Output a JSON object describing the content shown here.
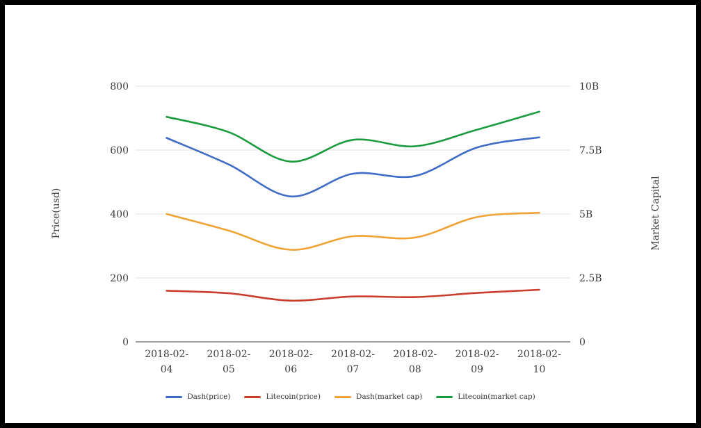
{
  "chart_data": {
    "type": "line",
    "categories": [
      "2018-02-04",
      "2018-02-05",
      "2018-02-06",
      "2018-02-07",
      "2018-02-08",
      "2018-02-09",
      "2018-02-10"
    ],
    "series": [
      {
        "name": "Dash(price)",
        "axis": "left",
        "color": "#3E6CC7",
        "values": [
          638,
          555,
          455,
          526,
          519,
          608,
          640
        ]
      },
      {
        "name": "Litecoin(price)",
        "axis": "left",
        "color": "#CB3D2B",
        "values": [
          160,
          152,
          129,
          142,
          140,
          153,
          163
        ]
      },
      {
        "name": "Dash(market cap)",
        "axis": "right",
        "color": "#F0A233",
        "unit": "B",
        "values": [
          5.0,
          4.35,
          3.6,
          4.13,
          4.08,
          4.88,
          5.05
        ]
      },
      {
        "name": "Litecoin(market cap)",
        "axis": "right",
        "color": "#1A9C3E",
        "unit": "B",
        "values": [
          8.8,
          8.2,
          7.05,
          7.9,
          7.65,
          8.3,
          9.0
        ]
      }
    ],
    "left_axis": {
      "title": "Price(usd)",
      "min": 0,
      "max": 800,
      "ticks": [
        {
          "value": 0,
          "label": "0"
        },
        {
          "value": 200,
          "label": "200"
        },
        {
          "value": 400,
          "label": "400"
        },
        {
          "value": 600,
          "label": "600"
        },
        {
          "value": 800,
          "label": "800"
        }
      ]
    },
    "right_axis": {
      "title": "Market Capital",
      "min": 0,
      "max": 10,
      "ticks": [
        {
          "value": 0,
          "label": "0"
        },
        {
          "value": 2.5,
          "label": "2.5B"
        },
        {
          "value": 5,
          "label": "5B"
        },
        {
          "value": 7.5,
          "label": "7.5B"
        },
        {
          "value": 10,
          "label": "10B"
        }
      ]
    },
    "grid": true,
    "legend_position": "bottom"
  },
  "colors": {
    "gridline": "#e0e0e0",
    "axis_line": "#424242",
    "tick_text": "#3d3d3d",
    "frame_border": "#000000"
  }
}
